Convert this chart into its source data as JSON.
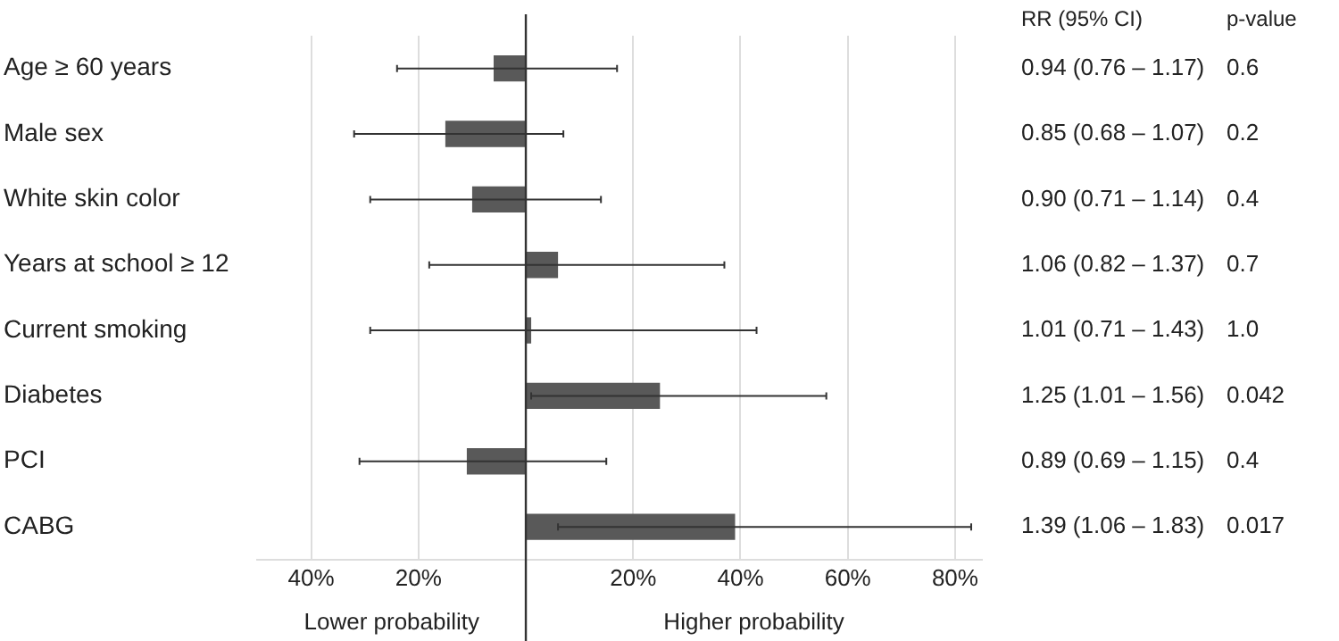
{
  "chart_data": {
    "type": "bar",
    "orientation": "horizontal",
    "categories": [
      "Age ≥ 60 years",
      "Male sex",
      "White skin color",
      "Years at school ≥ 12",
      "Current smoking",
      "Diabetes",
      "PCI",
      "CABG"
    ],
    "values": [
      -6,
      -15,
      -10,
      6,
      1,
      25,
      -11,
      39
    ],
    "errors": [
      [
        -24,
        17
      ],
      [
        -32,
        7
      ],
      [
        -29,
        14
      ],
      [
        -18,
        37
      ],
      [
        -29,
        43
      ],
      [
        1,
        56
      ],
      [
        -31,
        15
      ],
      [
        6,
        83
      ]
    ],
    "color": "#595959",
    "xlim": [
      -50,
      85
    ],
    "xticks": [
      {
        "value": -40,
        "label": "40%"
      },
      {
        "value": -20,
        "label": "20%"
      },
      {
        "value": 20,
        "label": "20%"
      },
      {
        "value": 40,
        "label": "40%"
      },
      {
        "value": 60,
        "label": "60%"
      },
      {
        "value": 80,
        "label": "80%"
      }
    ],
    "grid": "x",
    "legend": false,
    "annotations": [
      "RR (95% CI)",
      "p-value",
      "0.94 (0.76 – 1.17)",
      "0.6",
      "0.85 (0.68 – 1.07)",
      "0.2",
      "0.90 (0.71 – 1.14)",
      "0.4",
      "1.06 (0.82 – 1.37)",
      "0.7",
      "1.01 (0.71 – 1.43)",
      "1.0",
      "1.25 (1.01 – 1.56)",
      "0.042",
      "0.89 (0.69 – 1.15)",
      "0.4",
      "1.39 (1.06 – 1.83)",
      "0.017",
      "Lower probability",
      "Higher probability"
    ]
  }
}
